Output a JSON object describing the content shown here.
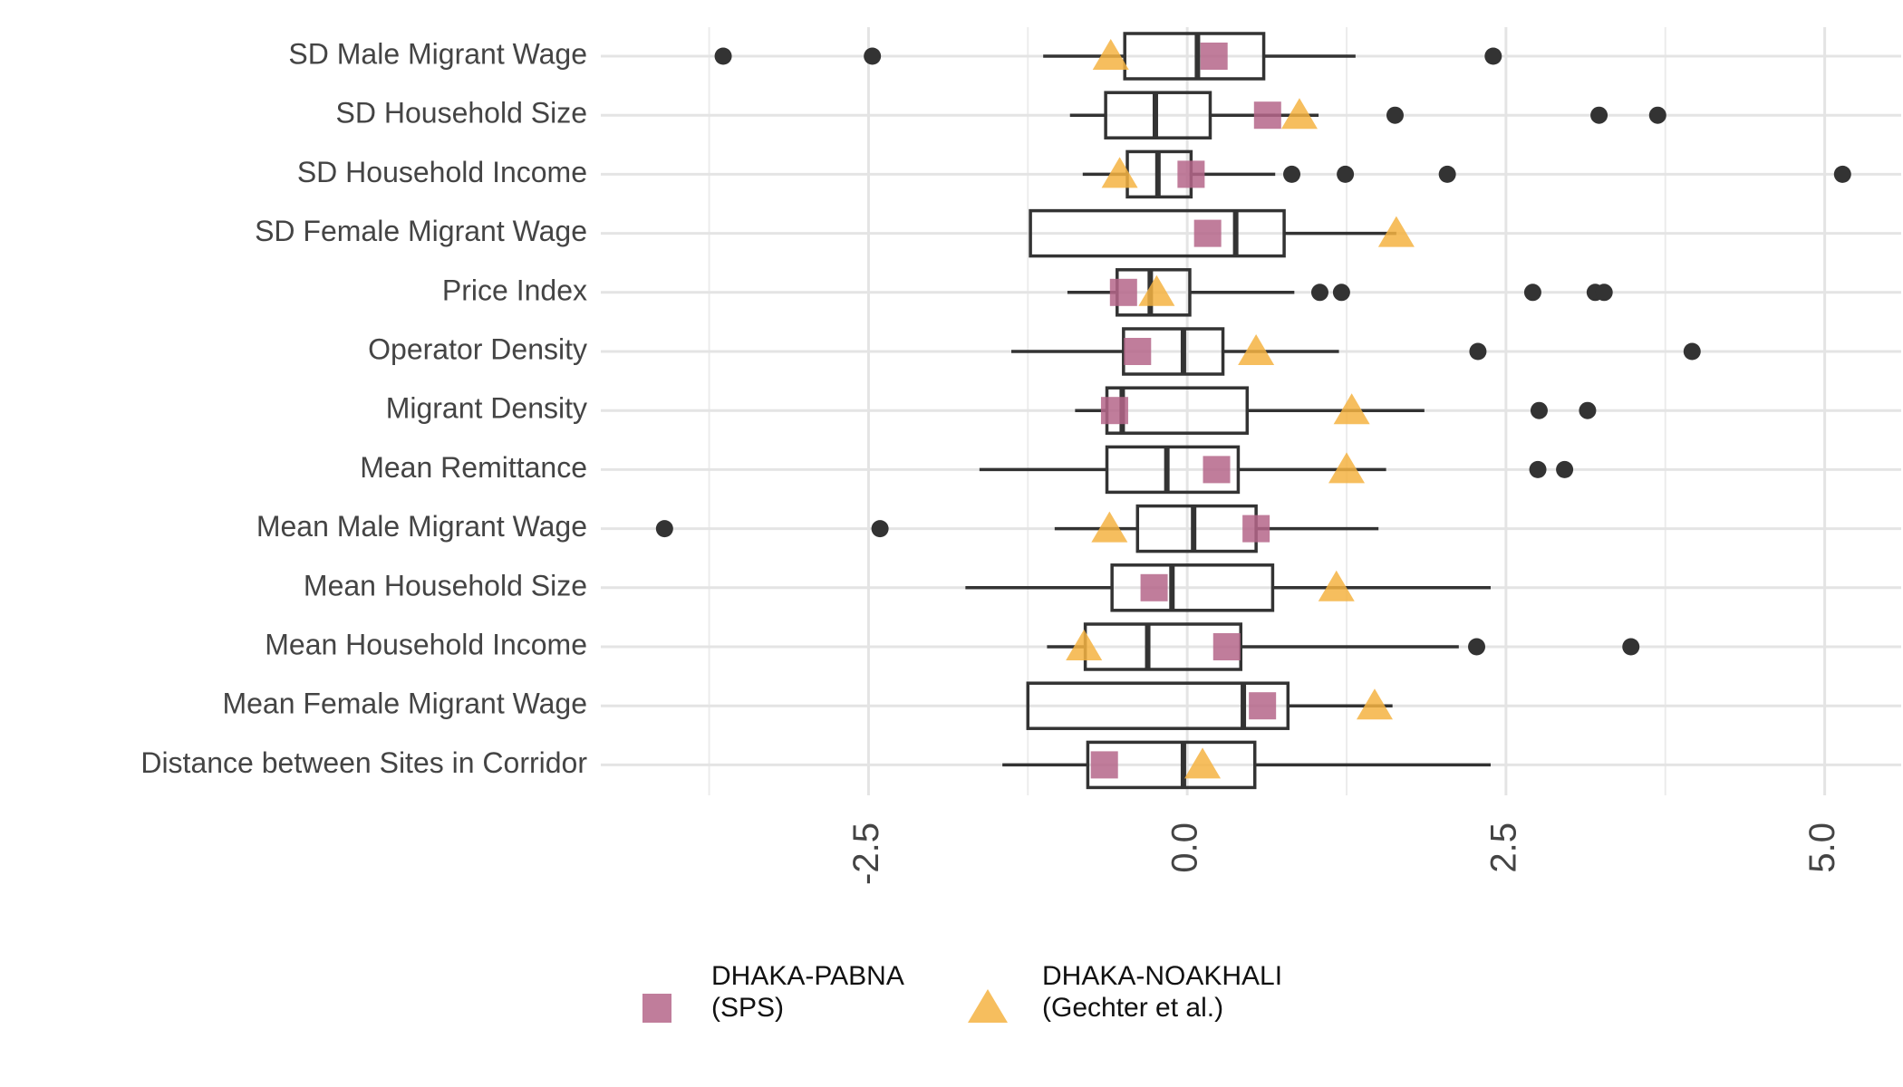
{
  "chart_data": {
    "type": "boxplot",
    "categories": [
      "SD Male Migrant Wage",
      "SD Household Size",
      "SD Household Income",
      "SD Female Migrant Wage",
      "Price Index",
      "Operator Density",
      "Migrant Density",
      "Mean Remittance",
      "Mean Male Migrant Wage",
      "Mean Household Size",
      "Mean Household Income",
      "Mean Female Migrant Wage",
      "Distance between Sites in Corridor"
    ],
    "boxes": [
      {
        "whislo": -1.13,
        "q1": -0.49,
        "med": 0.08,
        "q3": 0.6,
        "whishi": 1.32,
        "fliers": [
          -3.64,
          -2.47,
          2.4
        ]
      },
      {
        "whislo": -0.92,
        "q1": -0.64,
        "med": -0.25,
        "q3": 0.18,
        "whishi": 1.03,
        "fliers": [
          1.63,
          3.23,
          3.69
        ]
      },
      {
        "whislo": -0.82,
        "q1": -0.47,
        "med": -0.23,
        "q3": 0.03,
        "whishi": 0.69,
        "fliers": [
          0.82,
          1.24,
          2.04,
          5.14
        ]
      },
      {
        "whislo": -1.23,
        "q1": -1.23,
        "med": 0.38,
        "q3": 0.76,
        "whishi": 1.64,
        "fliers": []
      },
      {
        "whislo": -0.94,
        "q1": -0.55,
        "med": -0.29,
        "q3": 0.02,
        "whishi": 0.84,
        "fliers": [
          1.04,
          1.21,
          2.71,
          3.2,
          3.27
        ]
      },
      {
        "whislo": -1.38,
        "q1": -0.5,
        "med": -0.03,
        "q3": 0.28,
        "whishi": 1.19,
        "fliers": [
          2.28,
          3.96
        ]
      },
      {
        "whislo": -0.88,
        "q1": -0.63,
        "med": -0.51,
        "q3": 0.47,
        "whishi": 1.86,
        "fliers": [
          2.76,
          3.14
        ]
      },
      {
        "whislo": -1.63,
        "q1": -0.63,
        "med": -0.16,
        "q3": 0.4,
        "whishi": 1.56,
        "fliers": [
          2.75,
          2.96
        ]
      },
      {
        "whislo": -1.04,
        "q1": -0.39,
        "med": 0.05,
        "q3": 0.54,
        "whishi": 1.5,
        "fliers": [
          -4.1,
          -2.41
        ]
      },
      {
        "whislo": -1.74,
        "q1": -0.59,
        "med": -0.12,
        "q3": 0.67,
        "whishi": 2.38,
        "fliers": []
      },
      {
        "whislo": -1.1,
        "q1": -0.8,
        "med": -0.31,
        "q3": 0.42,
        "whishi": 2.13,
        "fliers": [
          2.27,
          3.48
        ]
      },
      {
        "whislo": -1.25,
        "q1": -1.25,
        "med": 0.44,
        "q3": 0.79,
        "whishi": 1.61,
        "fliers": []
      },
      {
        "whislo": -1.45,
        "q1": -0.78,
        "med": -0.03,
        "q3": 0.53,
        "whishi": 2.38,
        "fliers": []
      }
    ],
    "series": [
      {
        "name": "DHAKA-PABNA\n(SPS)",
        "color": "#b5668a",
        "marker": "square",
        "values": [
          0.21,
          0.63,
          0.03,
          0.16,
          -0.5,
          -0.39,
          -0.57,
          0.23,
          0.54,
          -0.26,
          0.31,
          0.59,
          -0.65
        ]
      },
      {
        "name": "DHAKA-NOAKHALI\n(Gechter et al.)",
        "color": "#f5b342",
        "marker": "triangle",
        "values": [
          -0.6,
          0.88,
          -0.53,
          1.64,
          -0.24,
          0.54,
          1.29,
          1.25,
          -0.61,
          1.17,
          -0.81,
          1.47,
          0.12
        ]
      }
    ],
    "xlim": [
      -4.6,
      5.6
    ],
    "xticks": [
      {
        "value": -2.5,
        "label": "-2.5"
      },
      {
        "value": 0,
        "label": "0.0"
      },
      2.5,
      {
        "value": 5,
        "label": "5.0"
      }
    ],
    "minor_xticks": [
      -3.75,
      -1.25,
      1.25,
      3.75
    ],
    "grid": true,
    "box_color": "#333333",
    "flier_color": "#333333"
  }
}
